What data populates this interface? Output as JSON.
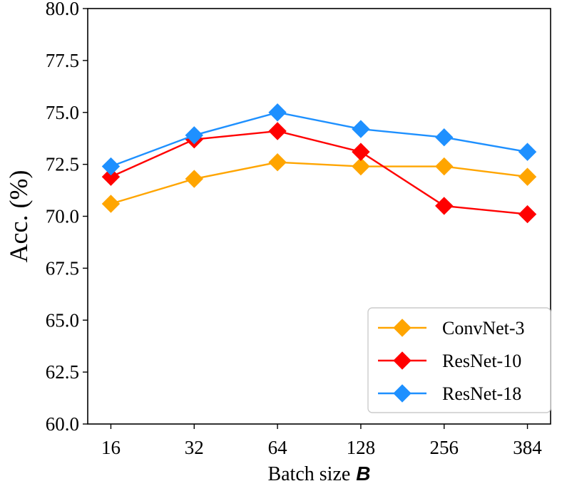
{
  "chart_data": {
    "type": "line",
    "title": "",
    "xlabel": "Batch size",
    "xlabel_var": "B",
    "ylabel": "Acc. (%)",
    "categories": [
      "16",
      "32",
      "64",
      "128",
      "256",
      "384"
    ],
    "ylim": [
      60.0,
      80.0
    ],
    "yticks": [
      "60.0",
      "62.5",
      "65.0",
      "67.5",
      "70.0",
      "72.5",
      "75.0",
      "77.5",
      "80.0"
    ],
    "grid": false,
    "legend_position": "bottom-right",
    "marker": "diamond",
    "series": [
      {
        "name": "ConvNet-3",
        "color": "#ffa500",
        "values": [
          70.6,
          71.8,
          72.6,
          72.4,
          72.4,
          71.9
        ]
      },
      {
        "name": "ResNet-10",
        "color": "#ff0000",
        "values": [
          71.9,
          73.7,
          74.1,
          73.1,
          70.5,
          70.1
        ]
      },
      {
        "name": "ResNet-18",
        "color": "#1e90ff",
        "values": [
          72.4,
          73.9,
          75.0,
          74.2,
          73.8,
          73.1
        ]
      }
    ]
  }
}
